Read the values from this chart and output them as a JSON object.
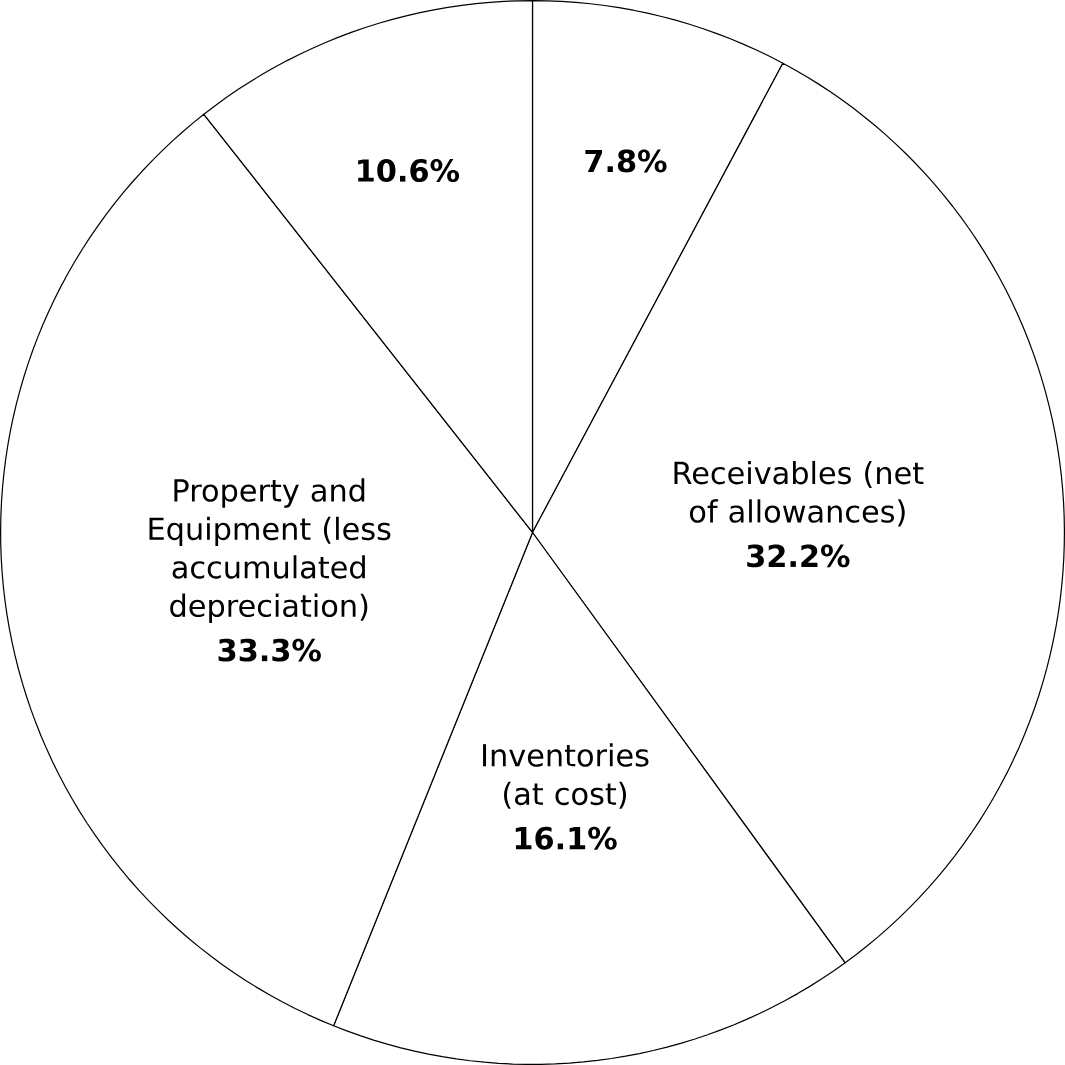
{
  "chart_data": {
    "type": "pie",
    "categories": [
      null,
      "Receivables (net of allowances)",
      "Inventories (at cost)",
      "Property and Equipment (less accumulated depreciation)",
      null
    ],
    "values": [
      7.8,
      32.2,
      16.1,
      33.3,
      10.6
    ],
    "value_labels": [
      "7.8%",
      "32.2%",
      "16.1%",
      "33.3%",
      "10.6%"
    ],
    "colors": [
      "#ffffff",
      "#ffffff",
      "#ffffff",
      "#ffffff",
      "#ffffff"
    ]
  }
}
